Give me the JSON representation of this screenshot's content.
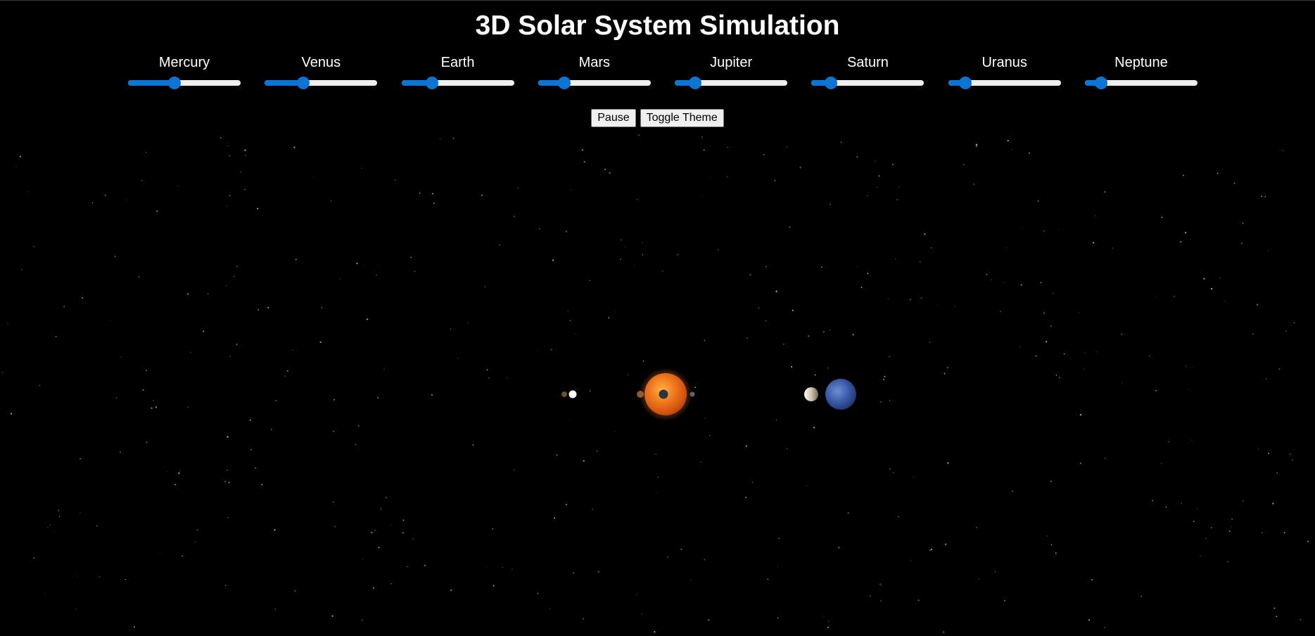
{
  "title": "3D Solar System Simulation",
  "controls": [
    {
      "label": "Mercury",
      "level": 0.4
    },
    {
      "label": "Venus",
      "level": 0.32
    },
    {
      "label": "Earth",
      "level": 0.24
    },
    {
      "label": "Mars",
      "level": 0.2
    },
    {
      "label": "Jupiter",
      "level": 0.14
    },
    {
      "label": "Saturn",
      "level": 0.13
    },
    {
      "label": "Uranus",
      "level": 0.11
    },
    {
      "label": "Neptune",
      "level": 0.1
    }
  ],
  "buttons": {
    "pause": "Pause",
    "toggle_theme": "Toggle Theme"
  },
  "colors": {
    "background": "#000000",
    "slider_accent": "#0a75d4",
    "slider_track": "#efefef",
    "sun": "#e8661a"
  }
}
